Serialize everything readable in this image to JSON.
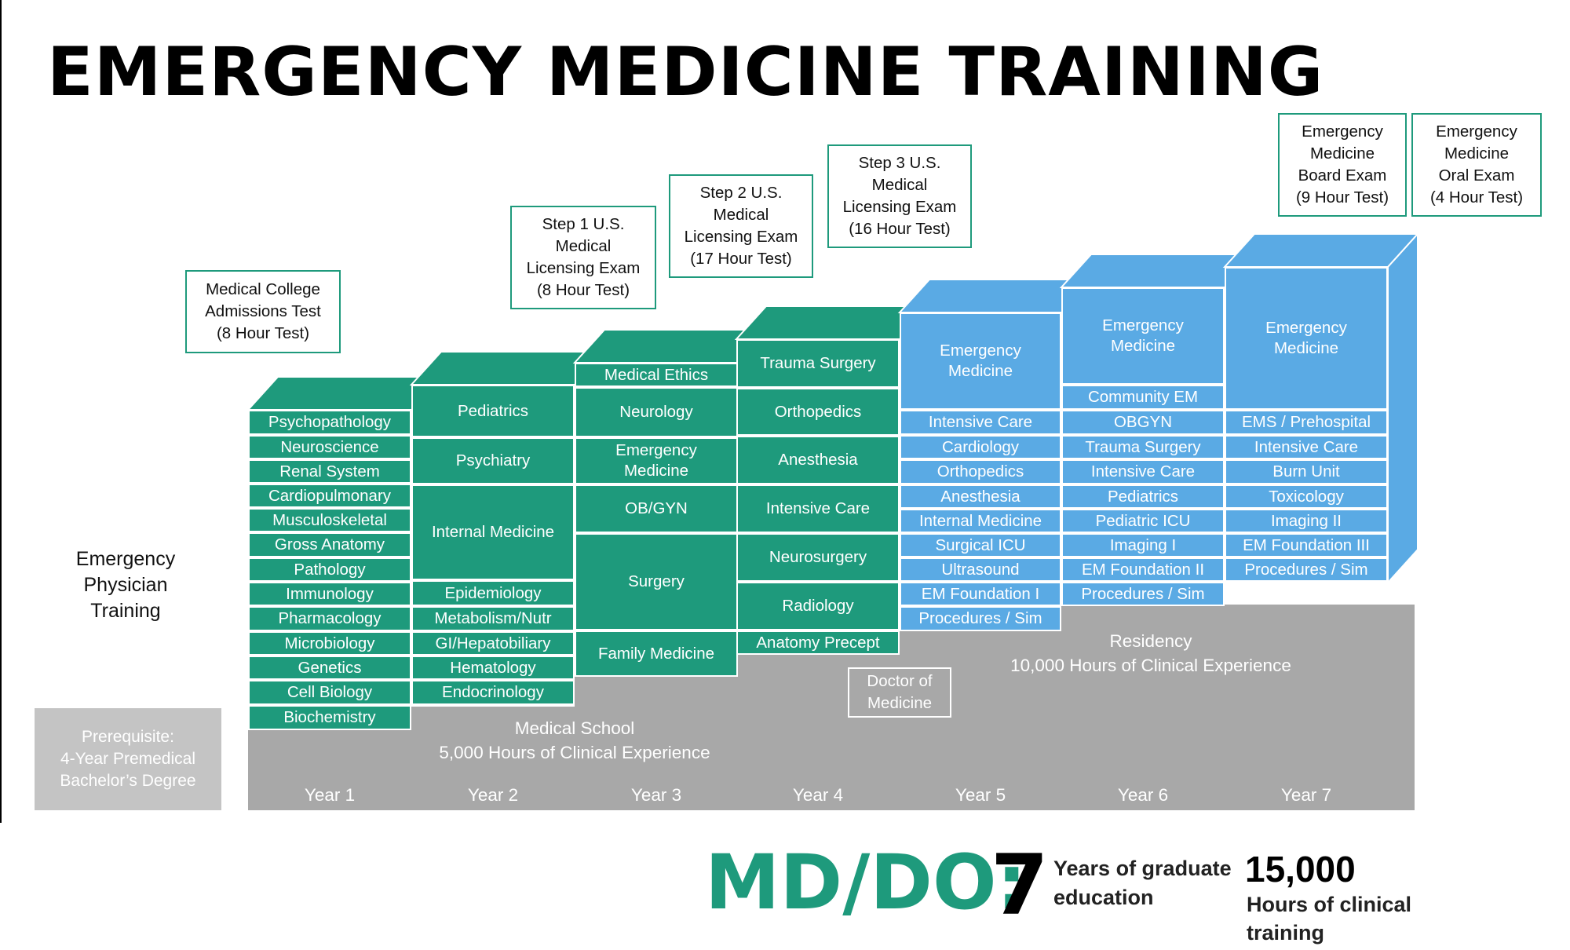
{
  "title": "EMERGENCY MEDICINE TRAINING",
  "side_label": "Emergency\nPhysician\nTraining",
  "prerequisite": "Prerequisite:\n4-Year Premedical\nBachelor’s Degree",
  "colors": {
    "medical_school": "#1e9a7c",
    "residency": "#5aaae4",
    "base": "#a8a8a8",
    "prereq": "#c4c4c4"
  },
  "years": [
    {
      "label": "Year 1",
      "color": "green",
      "courses": [
        "Psychopathology",
        "Neuroscience",
        "Renal System",
        "Cardiopulmonary",
        "Musculoskeletal",
        "Gross Anatomy",
        "Pathology",
        "Immunology",
        "Pharmacology",
        "Microbiology",
        "Genetics",
        "Cell Biology",
        "Biochemistry"
      ]
    },
    {
      "label": "Year 2",
      "color": "green",
      "courses": [
        "Pediatrics",
        "Psychiatry",
        "Internal Medicine",
        "Epidemiology",
        "Metabolism/Nutr",
        "GI/Hepatobiliary",
        "Hematology",
        "Endocrinology"
      ]
    },
    {
      "label": "Year 3",
      "color": "green",
      "courses": [
        "Medical Ethics",
        "Neurology",
        "Emergency\nMedicine",
        "OB/GYN",
        "Surgery",
        "Family Medicine"
      ]
    },
    {
      "label": "Year 4",
      "color": "green",
      "courses": [
        "Trauma Surgery",
        "Orthopedics",
        "Anesthesia",
        "Intensive Care",
        "Neurosurgery",
        "Radiology",
        "Anatomy Precept"
      ]
    },
    {
      "label": "Year 5",
      "color": "blue",
      "courses": [
        "Emergency\nMedicine",
        "Intensive Care",
        "Cardiology",
        "Orthopedics",
        "Anesthesia",
        "Internal Medicine",
        "Surgical ICU",
        "Ultrasound",
        "EM Foundation I",
        "Procedures / Sim"
      ]
    },
    {
      "label": "Year 6",
      "color": "blue",
      "courses": [
        "Emergency\nMedicine",
        "Community EM",
        "OBGYN",
        "Trauma Surgery",
        "Intensive Care",
        "Pediatrics",
        "Pediatric ICU",
        "Imaging I",
        "EM Foundation II",
        "Procedures / Sim"
      ]
    },
    {
      "label": "Year 7",
      "color": "blue",
      "courses": [
        "Emergency\nMedicine",
        "EMS / Prehospital",
        "Intensive Care",
        "Burn Unit",
        "Toxicology",
        "Imaging II",
        "EM Foundation III",
        "Procedures / Sim"
      ]
    }
  ],
  "exams": [
    "Medical College\nAdmissions Test\n(8 Hour Test)",
    "Step 1 U.S.\nMedical\nLicensing Exam\n(8 Hour Test)",
    "Step 2 U.S.\nMedical\nLicensing Exam\n(17 Hour Test)",
    "Step 3 U.S.\nMedical\nLicensing Exam\n(16 Hour Test)",
    "Emergency\nMedicine\nBoard Exam\n(9 Hour Test)",
    "Emergency\nMedicine\nOral Exam\n(4 Hour Test)"
  ],
  "doctor_label": "Doctor of\nMedicine",
  "stages": {
    "medical_school": "Medical School\n5,000 Hours of Clinical Experience",
    "residency": "Residency\n10,000 Hours of Clinical Experience"
  },
  "summary": {
    "degree": "MD/DO:",
    "years_value": "7",
    "years_text": "Years of graduate education",
    "hours_value": "15,000",
    "hours_text": "Hours of clinical training"
  }
}
